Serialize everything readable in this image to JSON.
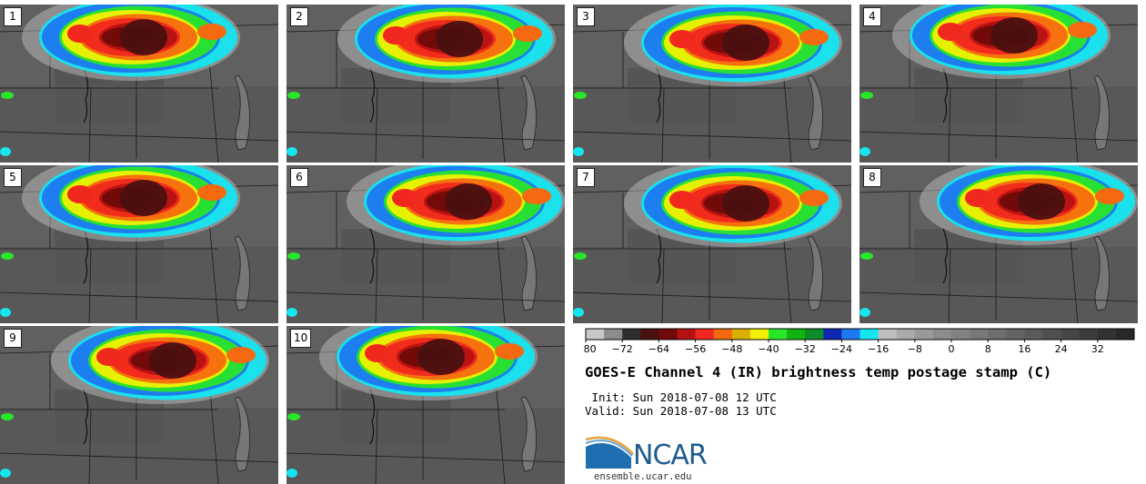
{
  "panels": [
    {
      "label": "1",
      "blob": "a"
    },
    {
      "label": "2",
      "blob": "b"
    },
    {
      "label": "3",
      "blob": "c"
    },
    {
      "label": "4",
      "blob": "d"
    },
    {
      "label": "5",
      "blob": "a"
    },
    {
      "label": "6",
      "blob": "e"
    },
    {
      "label": "7",
      "blob": "c"
    },
    {
      "label": "8",
      "blob": "e"
    },
    {
      "label": "9",
      "blob": "b"
    },
    {
      "label": "10",
      "blob": "d"
    }
  ],
  "colorbar": {
    "min": -80,
    "max": 40,
    "step": 4,
    "tick_labels": [
      "-80",
      "-72",
      "-64",
      "-56",
      "-48",
      "-40",
      "-32",
      "-24",
      "-16",
      "-8",
      "0",
      "8",
      "16",
      "24",
      "32"
    ],
    "colors": [
      "#c8c8c8",
      "#8c8c8c",
      "#2e2e2e",
      "#4a1010",
      "#6e0a0a",
      "#b41212",
      "#f0281e",
      "#f56a10",
      "#dcb000",
      "#f0f000",
      "#28e628",
      "#10b410",
      "#0a8c28",
      "#0f28b4",
      "#1e78f0",
      "#14e6f0",
      "#bebebe",
      "#aaaaaa",
      "#9a9a9a",
      "#8c8c8c",
      "#828282",
      "#787878",
      "#6e6e6e",
      "#646464",
      "#5a5a5a",
      "#505050",
      "#464646",
      "#3c3c3c",
      "#323232",
      "#282828"
    ]
  },
  "title": "GOES-E Channel 4 (IR) brightness temp postage stamp (C)",
  "init_line": " Init: Sun 2018-07-08 12 UTC",
  "valid_line": "Valid: Sun 2018-07-08 13 UTC",
  "logo": {
    "name": "NCAR",
    "url": "ensemble.ucar.edu"
  }
}
